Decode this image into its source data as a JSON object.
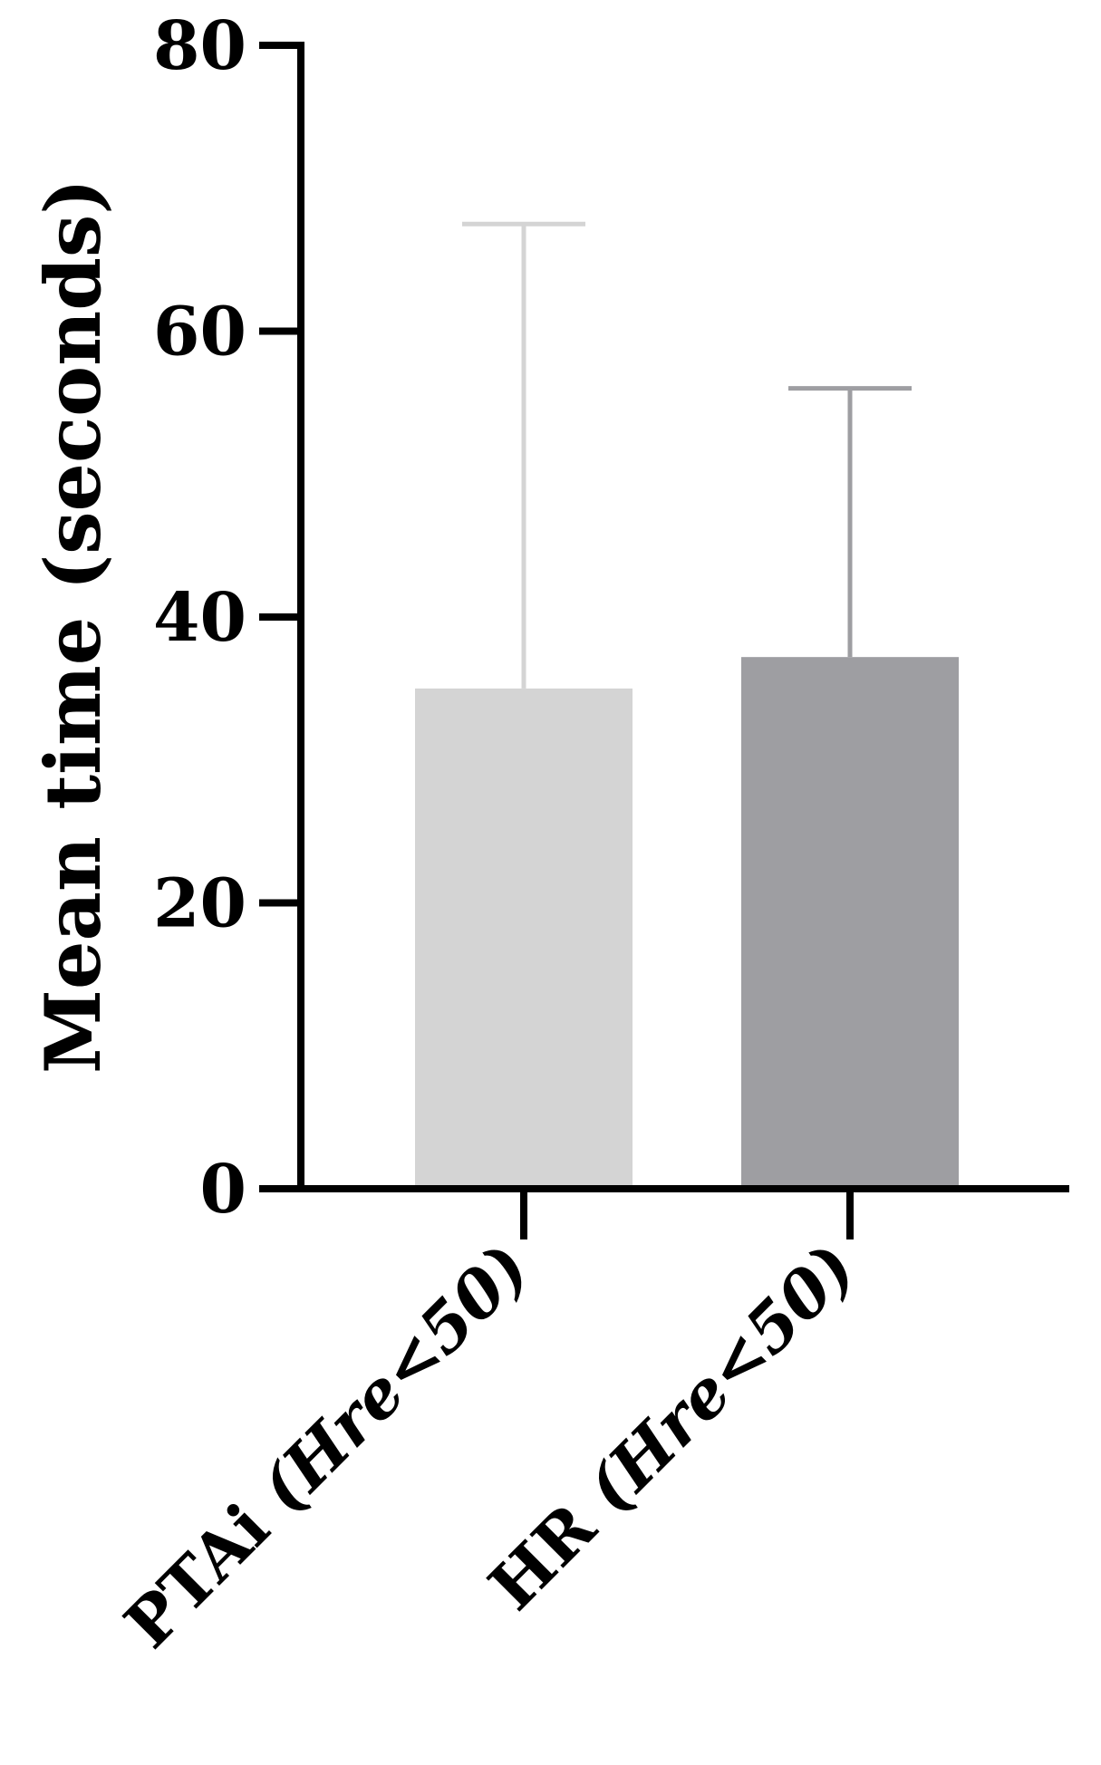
{
  "chart_data": {
    "type": "bar",
    "categories": [
      {
        "main": "PTAi ",
        "paren_open": "(",
        "italic": "Hre",
        "rest": "<50)"
      },
      {
        "main": "HR ",
        "paren_open": "(",
        "italic": "Hre",
        "rest": "<50)"
      }
    ],
    "values": [
      35,
      37.2
    ],
    "error_upper": [
      67.5,
      56
    ],
    "colors": [
      "#d4d4d4",
      "#9e9ea2"
    ],
    "error_colors": [
      "#d4d4d4",
      "#9e9ea2"
    ],
    "ylabel": "Mean time (seconds)",
    "ylim": [
      0,
      80
    ],
    "yticks": [
      0,
      20,
      40,
      60,
      80
    ],
    "grid": false,
    "legend": "none"
  }
}
